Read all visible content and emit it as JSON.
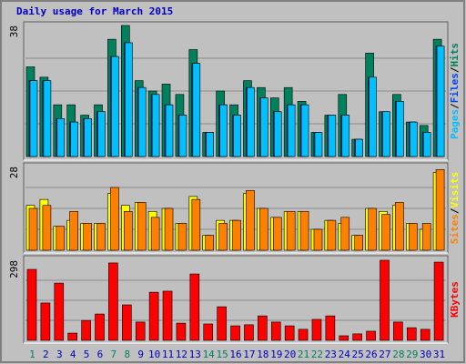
{
  "chart_data": {
    "type": "bar",
    "title": "Daily usage for March 2015",
    "title_color": "#0000c0",
    "categories": [
      "1",
      "2",
      "3",
      "4",
      "5",
      "6",
      "7",
      "8",
      "9",
      "10",
      "11",
      "12",
      "13",
      "14",
      "15",
      "16",
      "17",
      "18",
      "19",
      "20",
      "21",
      "22",
      "23",
      "24",
      "25",
      "26",
      "27",
      "28",
      "29",
      "30",
      "31"
    ],
    "category_colors": [
      "#00805c",
      "#0000c0",
      "#0000c0",
      "#0000c0",
      "#0000c0",
      "#0000c0",
      "#00805c",
      "#00805c",
      "#0000c0",
      "#0000c0",
      "#0000c0",
      "#0000c0",
      "#0000c0",
      "#00805c",
      "#00805c",
      "#0000c0",
      "#0000c0",
      "#0000c0",
      "#0000c0",
      "#0000c0",
      "#00805c",
      "#00805c",
      "#0000c0",
      "#0000c0",
      "#0000c0",
      "#0000c0",
      "#0000c0",
      "#00805c",
      "#00805c",
      "#0000c0",
      "#0000c0"
    ],
    "legend_separator": "/",
    "panels": [
      {
        "ylim": [
          0,
          38
        ],
        "yticks": [
          38
        ],
        "series": [
          {
            "name": "Hits",
            "color": "#00805c",
            "values": [
              26,
              23,
              15,
              15,
              12,
              15,
              34,
              38,
              22,
              19,
              21,
              18,
              31,
              7,
              19,
              15,
              22,
              20,
              17,
              20,
              16,
              7,
              12,
              18,
              5,
              30,
              13,
              18,
              10,
              9,
              34
            ]
          },
          {
            "name": "Files",
            "color": "#0040ff",
            "values": [
              22,
              22,
              11,
              10,
              11,
              13,
              29,
              33,
              20,
              18,
              15,
              12,
              27,
              7,
              15,
              12,
              20,
              17,
              13,
              15,
              15,
              7,
              12,
              12,
              5,
              23,
              13,
              16,
              10,
              7,
              32
            ]
          },
          {
            "name": "Pages",
            "color": "#00c0ff",
            "values": [
              22,
              22,
              11,
              10,
              11,
              13,
              29,
              33,
              20,
              18,
              15,
              12,
              27,
              7,
              15,
              12,
              20,
              17,
              13,
              15,
              15,
              7,
              12,
              12,
              5,
              23,
              13,
              16,
              10,
              7,
              32
            ]
          }
        ]
      },
      {
        "ylim": [
          0,
          28
        ],
        "yticks": [
          28
        ],
        "series": [
          {
            "name": "Visits",
            "color": "#ffff00",
            "values": [
              15,
              17,
              8,
              10,
              9,
              9,
              19,
              15,
              16,
              13,
              14,
              9,
              18,
              5,
              10,
              10,
              19,
              14,
              11,
              13,
              13,
              7,
              10,
              9,
              5,
              14,
              13,
              15,
              9,
              7,
              26
            ]
          },
          {
            "name": "Sites",
            "color": "#ff8000",
            "values": [
              14,
              15,
              8,
              13,
              9,
              9,
              21,
              13,
              16,
              11,
              14,
              9,
              17,
              5,
              9,
              10,
              20,
              14,
              11,
              13,
              13,
              7,
              10,
              11,
              5,
              14,
              12,
              16,
              9,
              9,
              27
            ]
          }
        ]
      },
      {
        "ylim": [
          0,
          298
        ],
        "yticks": [
          298
        ],
        "series": [
          {
            "name": "KBytes",
            "color": "#ff0000",
            "values": [
              264,
              139,
              213,
              27,
              74,
              98,
              288,
              132,
              68,
              179,
              183,
              64,
              247,
              61,
              125,
              54,
              58,
              91,
              68,
              54,
              41,
              78,
              91,
              17,
              24,
              34,
              298,
              68,
              47,
              41,
              291
            ]
          }
        ]
      }
    ]
  }
}
